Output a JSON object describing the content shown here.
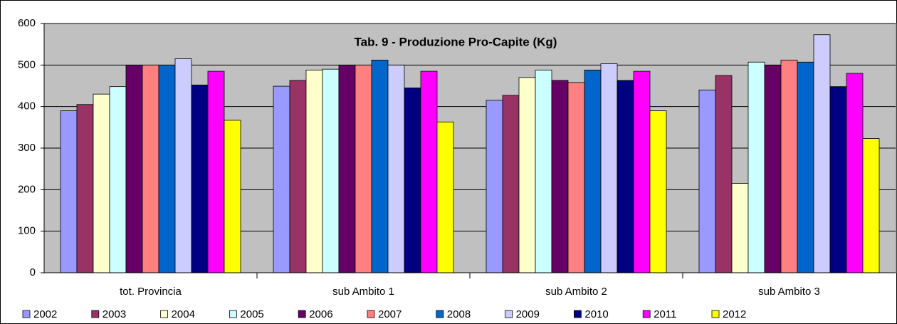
{
  "chart_data": {
    "type": "bar",
    "title": "Tab. 9 - Produzione Pro-Capite (Kg)",
    "categories": [
      "tot. Provincia",
      "sub Ambito 1",
      "sub Ambito 2",
      "sub Ambito 3"
    ],
    "series": [
      {
        "name": "2002",
        "color": "#9999ff",
        "values": [
          390,
          449,
          415,
          440
        ]
      },
      {
        "name": "2003",
        "color": "#993366",
        "values": [
          405,
          463,
          427,
          475
        ]
      },
      {
        "name": "2004",
        "color": "#ffffcc",
        "values": [
          430,
          488,
          470,
          215
        ]
      },
      {
        "name": "2005",
        "color": "#ccffff",
        "values": [
          448,
          490,
          488,
          507
        ]
      },
      {
        "name": "2006",
        "color": "#660066",
        "values": [
          500,
          500,
          463,
          500
        ]
      },
      {
        "name": "2007",
        "color": "#ff8080",
        "values": [
          500,
          500,
          458,
          512
        ]
      },
      {
        "name": "2008",
        "color": "#0066cc",
        "values": [
          500,
          512,
          488,
          507
        ]
      },
      {
        "name": "2009",
        "color": "#ccccff",
        "values": [
          515,
          500,
          503,
          573
        ]
      },
      {
        "name": "2010",
        "color": "#000080",
        "values": [
          452,
          445,
          463,
          448
        ]
      },
      {
        "name": "2011",
        "color": "#ff00ff",
        "values": [
          485,
          485,
          485,
          480
        ]
      },
      {
        "name": "2012",
        "color": "#ffff00",
        "values": [
          367,
          363,
          390,
          323
        ]
      }
    ],
    "ylim": [
      0,
      600
    ],
    "yticks": [
      0,
      100,
      200,
      300,
      400,
      500,
      600
    ],
    "grid": true,
    "legend": "bottom"
  }
}
